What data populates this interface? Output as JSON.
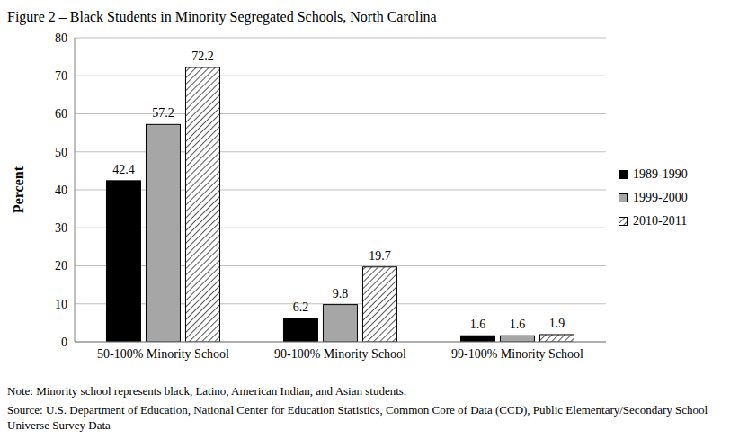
{
  "chart_data": {
    "type": "bar",
    "title": "Figure 2 – Black Students in Minority Segregated Schools, North Carolina",
    "y_label": "Percent",
    "categories": [
      "50-100% Minority School",
      "90-100% Minority School",
      "99-100% Minority School"
    ],
    "series": [
      {
        "name": "1989-1990",
        "color": "#000000",
        "values": [
          42.4,
          6.2,
          1.6
        ]
      },
      {
        "name": "1999-2000",
        "color": "#a6a6a6",
        "values": [
          57.2,
          9.8,
          1.6
        ]
      },
      {
        "name": "2010-2011",
        "color": "#595959",
        "values": [
          72.2,
          19.7,
          1.9
        ]
      }
    ],
    "ylim": [
      0,
      80
    ],
    "yticks": [
      0,
      10,
      20,
      30,
      40,
      50,
      60,
      70,
      80
    ],
    "grid": true,
    "legend": "right",
    "data_labels": true,
    "annotations": [
      "Note: Minority school represents black, Latino, American Indian, and Asian students.",
      "Source: U.S. Department of Education, National Center for Education Statistics, Common Core of Data (CCD), Public Elementary/Secondary School Universe Survey Data"
    ]
  }
}
